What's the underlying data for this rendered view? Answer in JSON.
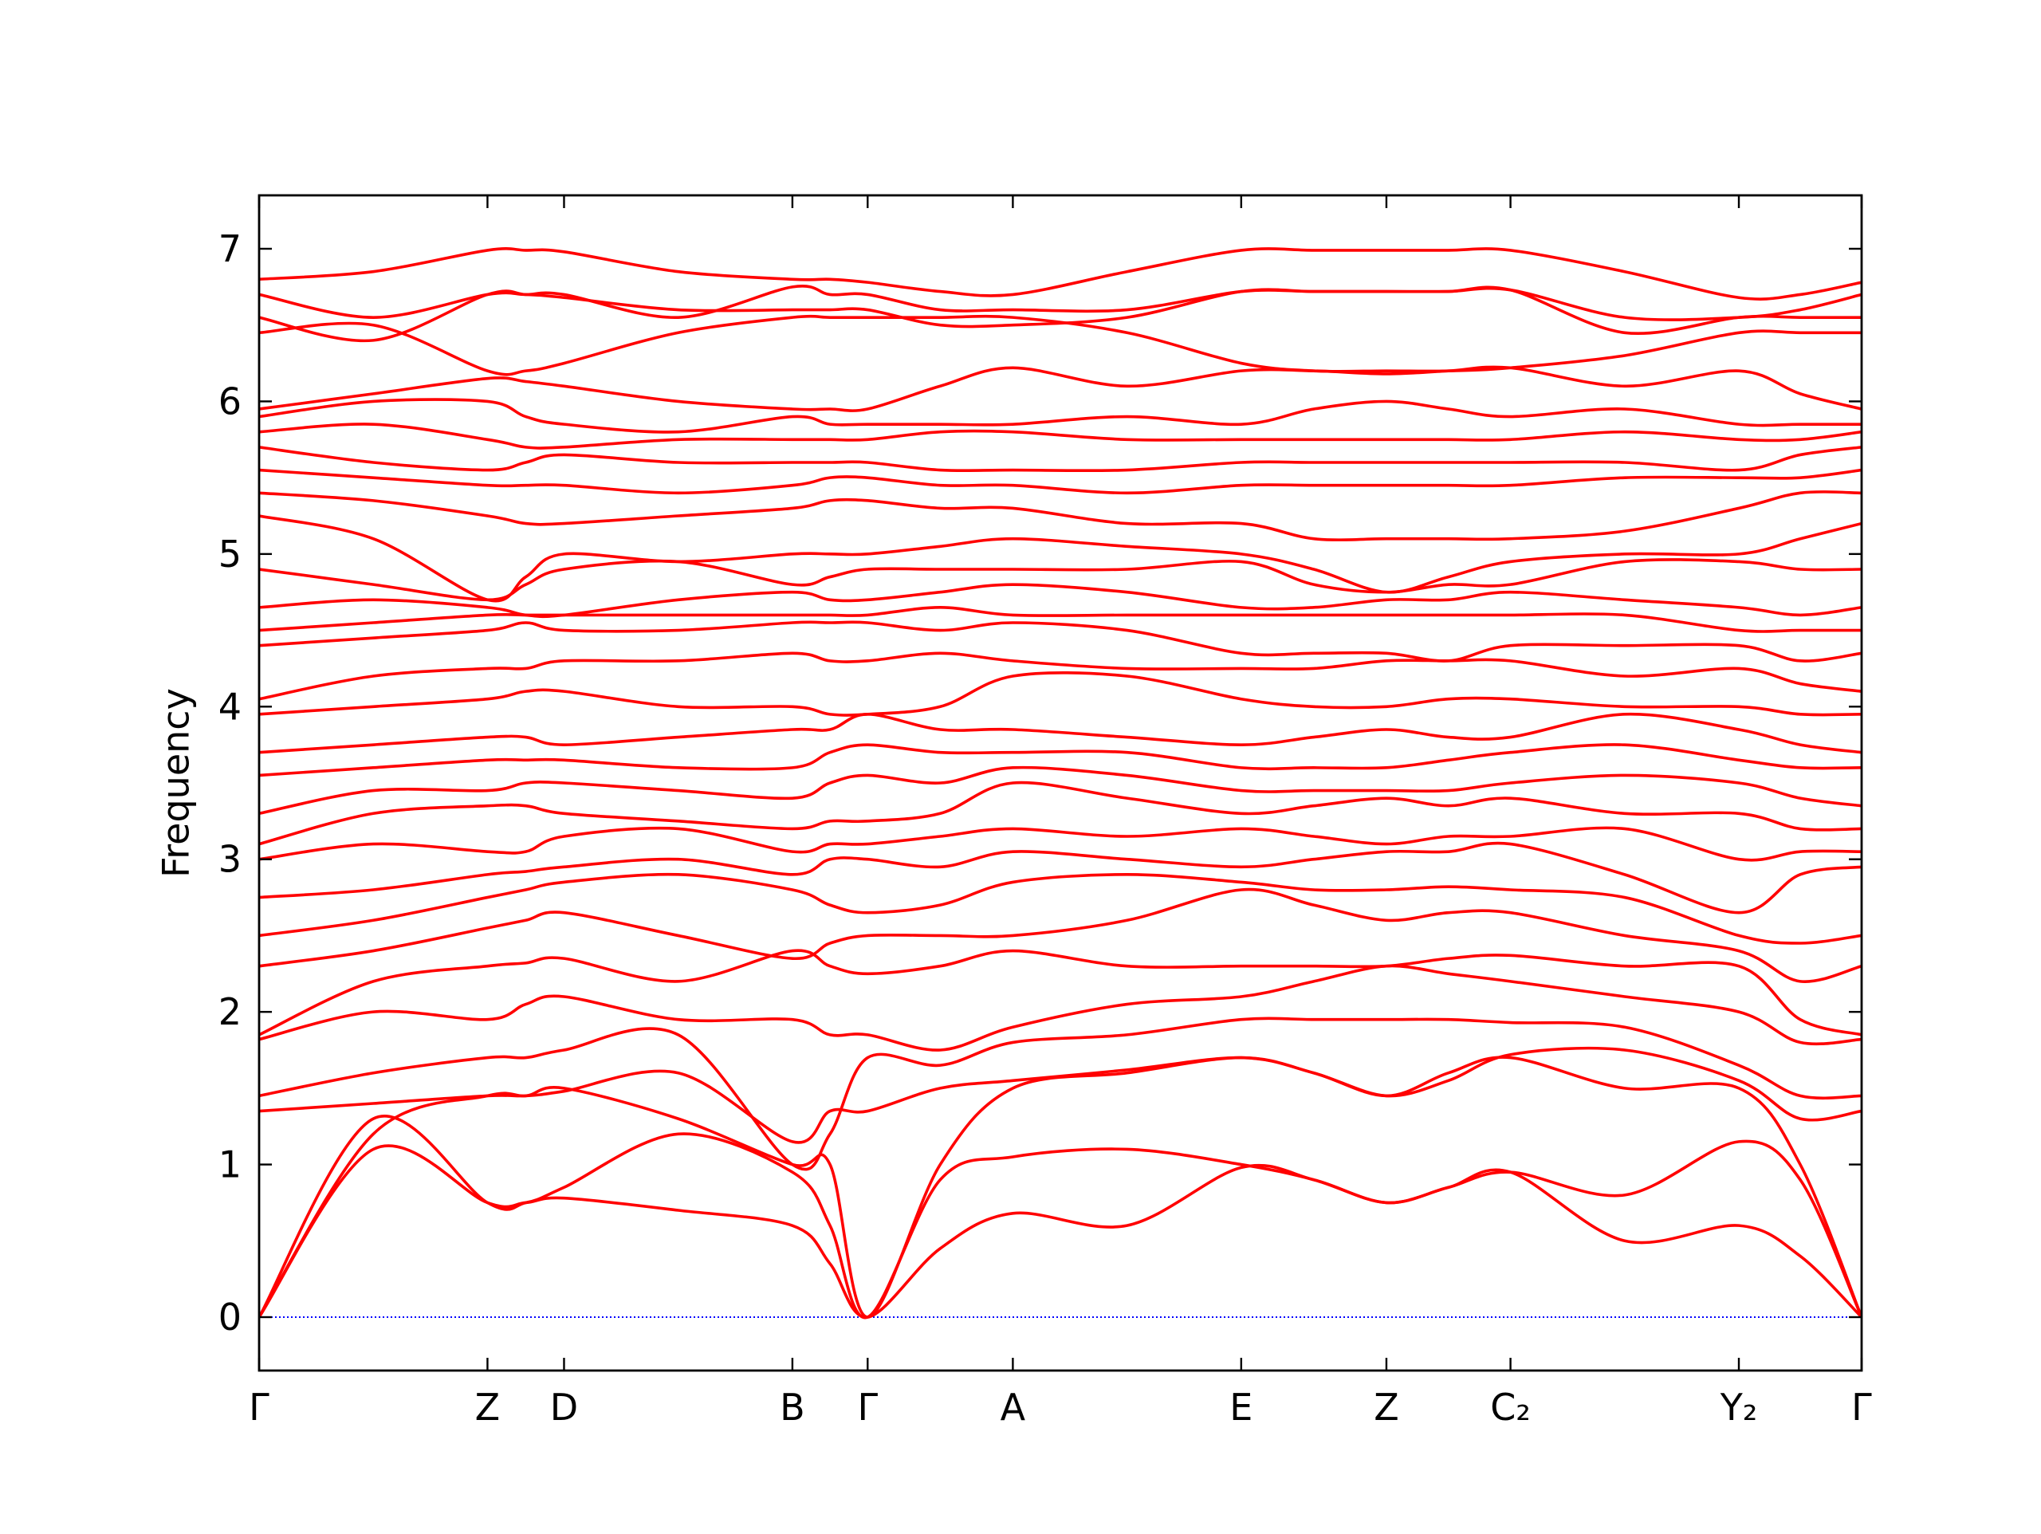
{
  "chart_data": {
    "type": "line",
    "y_label": "Frequency",
    "color": "#ff0000",
    "xlim": [
      0,
      1.214
    ],
    "ylim": [
      -0.35,
      7.35
    ],
    "yticks": [
      0,
      1,
      2,
      3,
      4,
      5,
      6,
      7
    ],
    "xticks": [
      {
        "value": 0,
        "label": "Γ"
      },
      {
        "value": 0.173,
        "label": "Z"
      },
      {
        "value": 0.231,
        "label": "D"
      },
      {
        "value": 0.404,
        "label": "B"
      },
      {
        "value": 0.461,
        "label": "Γ"
      },
      {
        "value": 0.571,
        "label": "A"
      },
      {
        "value": 0.744,
        "label": "E"
      },
      {
        "value": 0.854,
        "label": "Z"
      },
      {
        "value": 0.948,
        "label": "C₂"
      },
      {
        "value": 1.121,
        "label": "Y₂"
      },
      {
        "value": 1.214,
        "label": "Γ"
      }
    ],
    "hline": {
      "value": 0,
      "color": "#0000ff"
    },
    "x": [
      0,
      0.0865,
      0.173,
      0.202,
      0.231,
      0.3175,
      0.404,
      0.4325,
      0.461,
      0.516,
      0.571,
      0.6575,
      0.744,
      0.799,
      0.854,
      0.901,
      0.948,
      1.0345,
      1.121,
      1.1675,
      1.214
    ],
    "series": [
      {
        "values": [
          0,
          1.1,
          0.75,
          0.75,
          0.78,
          0.7,
          0.6,
          0.35,
          0,
          0.45,
          0.68,
          0.6,
          0.98,
          0.9,
          0.75,
          0.85,
          0.95,
          0.5,
          0.6,
          0.4,
          0
        ]
      },
      {
        "values": [
          0,
          1.3,
          0.75,
          0.75,
          0.85,
          1.2,
          0.95,
          0.6,
          0,
          0.9,
          1.05,
          1.1,
          1.0,
          0.9,
          0.75,
          0.85,
          0.95,
          0.8,
          1.15,
          0.9,
          0
        ]
      },
      {
        "values": [
          0,
          1.2,
          1.45,
          1.45,
          1.5,
          1.3,
          1.0,
          1.0,
          0,
          1.0,
          1.5,
          1.6,
          1.7,
          1.6,
          1.45,
          1.6,
          1.7,
          1.5,
          1.5,
          1.0,
          0
        ]
      },
      {
        "values": [
          1.35,
          1.4,
          1.45,
          1.45,
          1.48,
          1.6,
          1.15,
          1.35,
          1.35,
          1.5,
          1.55,
          1.62,
          1.7,
          1.6,
          1.45,
          1.55,
          1.72,
          1.75,
          1.55,
          1.3,
          1.35
        ]
      },
      {
        "values": [
          1.45,
          1.6,
          1.7,
          1.7,
          1.75,
          1.85,
          1.0,
          1.2,
          1.7,
          1.65,
          1.8,
          1.85,
          1.95,
          1.95,
          1.95,
          1.95,
          1.93,
          1.9,
          1.65,
          1.45,
          1.45
        ]
      },
      {
        "values": [
          1.82,
          2.0,
          1.95,
          2.05,
          2.1,
          1.95,
          1.95,
          1.85,
          1.85,
          1.75,
          1.9,
          2.05,
          2.1,
          2.2,
          2.3,
          2.25,
          2.2,
          2.1,
          2.0,
          1.8,
          1.82
        ]
      },
      {
        "values": [
          1.85,
          2.2,
          2.3,
          2.32,
          2.35,
          2.2,
          2.4,
          2.3,
          2.25,
          2.3,
          2.4,
          2.3,
          2.3,
          2.3,
          2.3,
          2.35,
          2.37,
          2.3,
          2.3,
          1.95,
          1.85
        ]
      },
      {
        "values": [
          2.3,
          2.4,
          2.55,
          2.6,
          2.65,
          2.5,
          2.35,
          2.45,
          2.5,
          2.5,
          2.5,
          2.6,
          2.8,
          2.7,
          2.6,
          2.65,
          2.65,
          2.5,
          2.4,
          2.2,
          2.3
        ]
      },
      {
        "values": [
          2.5,
          2.6,
          2.75,
          2.8,
          2.85,
          2.9,
          2.8,
          2.7,
          2.65,
          2.7,
          2.85,
          2.9,
          2.85,
          2.8,
          2.8,
          2.82,
          2.8,
          2.75,
          2.5,
          2.45,
          2.5
        ]
      },
      {
        "values": [
          2.75,
          2.8,
          2.9,
          2.92,
          2.95,
          3.0,
          2.9,
          3.0,
          3.0,
          2.95,
          3.05,
          3.0,
          2.95,
          3.0,
          3.05,
          3.05,
          3.1,
          2.9,
          2.65,
          2.9,
          2.95
        ]
      },
      {
        "values": [
          3.0,
          3.1,
          3.05,
          3.05,
          3.15,
          3.2,
          3.05,
          3.1,
          3.1,
          3.15,
          3.2,
          3.15,
          3.2,
          3.15,
          3.1,
          3.15,
          3.15,
          3.2,
          3.0,
          3.05,
          3.05
        ]
      },
      {
        "values": [
          3.1,
          3.3,
          3.35,
          3.35,
          3.3,
          3.25,
          3.2,
          3.25,
          3.25,
          3.3,
          3.5,
          3.4,
          3.3,
          3.35,
          3.4,
          3.35,
          3.4,
          3.3,
          3.3,
          3.2,
          3.2
        ]
      },
      {
        "values": [
          3.3,
          3.45,
          3.45,
          3.5,
          3.5,
          3.45,
          3.4,
          3.5,
          3.55,
          3.5,
          3.6,
          3.55,
          3.45,
          3.45,
          3.45,
          3.45,
          3.5,
          3.55,
          3.5,
          3.4,
          3.35
        ]
      },
      {
        "values": [
          3.55,
          3.6,
          3.65,
          3.65,
          3.65,
          3.6,
          3.6,
          3.7,
          3.75,
          3.7,
          3.7,
          3.7,
          3.6,
          3.6,
          3.6,
          3.65,
          3.7,
          3.75,
          3.65,
          3.6,
          3.6
        ]
      },
      {
        "values": [
          3.7,
          3.75,
          3.8,
          3.8,
          3.75,
          3.8,
          3.85,
          3.85,
          3.95,
          3.85,
          3.85,
          3.8,
          3.75,
          3.8,
          3.85,
          3.8,
          3.8,
          3.95,
          3.85,
          3.75,
          3.7
        ]
      },
      {
        "values": [
          3.95,
          4.0,
          4.05,
          4.1,
          4.1,
          4.0,
          4.0,
          3.95,
          3.95,
          4.0,
          4.2,
          4.2,
          4.05,
          4.0,
          4.0,
          4.05,
          4.05,
          4.0,
          4.0,
          3.95,
          3.95
        ]
      },
      {
        "values": [
          4.05,
          4.2,
          4.25,
          4.25,
          4.3,
          4.3,
          4.35,
          4.3,
          4.3,
          4.35,
          4.3,
          4.25,
          4.25,
          4.25,
          4.3,
          4.3,
          4.3,
          4.2,
          4.25,
          4.15,
          4.1
        ]
      },
      {
        "values": [
          4.4,
          4.45,
          4.5,
          4.55,
          4.5,
          4.5,
          4.55,
          4.55,
          4.55,
          4.5,
          4.55,
          4.5,
          4.35,
          4.35,
          4.35,
          4.3,
          4.4,
          4.4,
          4.4,
          4.3,
          4.35
        ]
      },
      {
        "values": [
          4.5,
          4.55,
          4.6,
          4.6,
          4.6,
          4.6,
          4.6,
          4.6,
          4.6,
          4.65,
          4.6,
          4.6,
          4.6,
          4.6,
          4.6,
          4.6,
          4.6,
          4.6,
          4.5,
          4.5,
          4.5
        ]
      },
      {
        "values": [
          4.65,
          4.7,
          4.65,
          4.6,
          4.6,
          4.7,
          4.75,
          4.7,
          4.7,
          4.75,
          4.8,
          4.75,
          4.65,
          4.65,
          4.7,
          4.7,
          4.75,
          4.7,
          4.65,
          4.6,
          4.65
        ]
      },
      {
        "values": [
          4.9,
          4.8,
          4.7,
          4.8,
          4.9,
          4.95,
          4.8,
          4.85,
          4.9,
          4.9,
          4.9,
          4.9,
          4.95,
          4.8,
          4.75,
          4.8,
          4.8,
          4.95,
          4.95,
          4.9,
          4.9
        ]
      },
      {
        "values": [
          5.25,
          5.1,
          4.7,
          4.85,
          5.0,
          4.95,
          5.0,
          5.0,
          5.0,
          5.05,
          5.1,
          5.05,
          5.0,
          4.9,
          4.75,
          4.85,
          4.95,
          5.0,
          5.0,
          5.1,
          5.2
        ]
      },
      {
        "values": [
          5.4,
          5.35,
          5.25,
          5.2,
          5.2,
          5.25,
          5.3,
          5.35,
          5.35,
          5.3,
          5.3,
          5.2,
          5.2,
          5.1,
          5.1,
          5.1,
          5.1,
          5.15,
          5.3,
          5.4,
          5.4
        ]
      },
      {
        "values": [
          5.55,
          5.5,
          5.45,
          5.45,
          5.45,
          5.4,
          5.45,
          5.5,
          5.5,
          5.45,
          5.45,
          5.4,
          5.45,
          5.45,
          5.45,
          5.45,
          5.45,
          5.5,
          5.5,
          5.5,
          5.55
        ]
      },
      {
        "values": [
          5.7,
          5.6,
          5.55,
          5.6,
          5.65,
          5.6,
          5.6,
          5.6,
          5.6,
          5.55,
          5.55,
          5.55,
          5.6,
          5.6,
          5.6,
          5.6,
          5.6,
          5.6,
          5.55,
          5.65,
          5.7
        ]
      },
      {
        "values": [
          5.8,
          5.85,
          5.75,
          5.7,
          5.7,
          5.75,
          5.75,
          5.75,
          5.75,
          5.8,
          5.8,
          5.75,
          5.75,
          5.75,
          5.75,
          5.75,
          5.75,
          5.8,
          5.75,
          5.75,
          5.8
        ]
      },
      {
        "values": [
          5.9,
          6.0,
          6.0,
          5.9,
          5.85,
          5.8,
          5.9,
          5.85,
          5.85,
          5.85,
          5.85,
          5.9,
          5.85,
          5.95,
          6.0,
          5.95,
          5.9,
          5.95,
          5.85,
          5.85,
          5.85
        ]
      },
      {
        "values": [
          5.95,
          6.05,
          6.15,
          6.13,
          6.1,
          6.0,
          5.95,
          5.95,
          5.95,
          6.1,
          6.22,
          6.1,
          6.2,
          6.2,
          6.18,
          6.2,
          6.22,
          6.1,
          6.2,
          6.05,
          5.95
        ]
      },
      {
        "values": [
          6.45,
          6.5,
          6.2,
          6.2,
          6.25,
          6.45,
          6.55,
          6.55,
          6.55,
          6.55,
          6.55,
          6.45,
          6.25,
          6.2,
          6.2,
          6.2,
          6.22,
          6.3,
          6.45,
          6.45,
          6.45
        ]
      },
      {
        "values": [
          6.55,
          6.4,
          6.7,
          6.7,
          6.68,
          6.6,
          6.6,
          6.6,
          6.6,
          6.5,
          6.5,
          6.55,
          6.72,
          6.72,
          6.72,
          6.72,
          6.73,
          6.45,
          6.55,
          6.55,
          6.55
        ]
      },
      {
        "values": [
          6.7,
          6.55,
          6.7,
          6.7,
          6.7,
          6.55,
          6.75,
          6.7,
          6.7,
          6.6,
          6.6,
          6.6,
          6.72,
          6.72,
          6.72,
          6.72,
          6.73,
          6.55,
          6.55,
          6.6,
          6.7
        ]
      },
      {
        "values": [
          6.8,
          6.85,
          6.99,
          6.99,
          6.98,
          6.85,
          6.8,
          6.8,
          6.78,
          6.72,
          6.7,
          6.85,
          6.99,
          6.99,
          6.99,
          6.99,
          6.99,
          6.85,
          6.68,
          6.7,
          6.78
        ]
      }
    ]
  }
}
